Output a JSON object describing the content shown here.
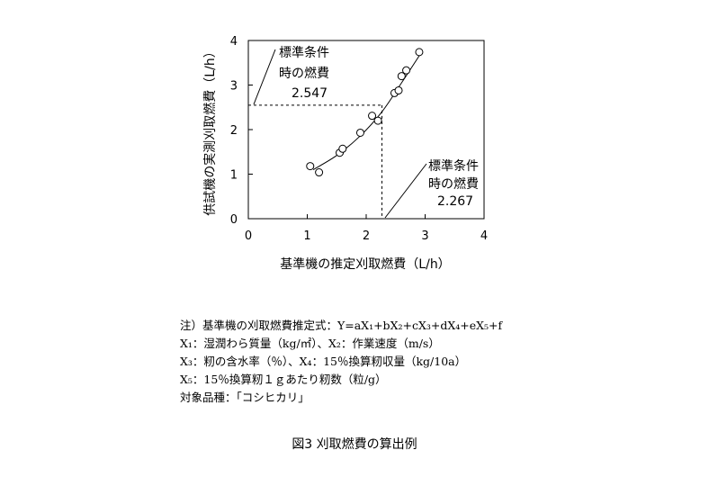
{
  "chart_data": {
    "type": "scatter",
    "xlabel": "基準機の推定刈取燃費（L/h）",
    "ylabel": "供試機の実測刈取燃費（L/h）",
    "xlim": [
      0,
      4
    ],
    "ylim": [
      0,
      4
    ],
    "xticks": [
      "0",
      "1",
      "2",
      "3",
      "4"
    ],
    "yticks": [
      "0",
      "1",
      "2",
      "3",
      "4"
    ],
    "points": [
      {
        "x": 1.05,
        "y": 1.18
      },
      {
        "x": 1.2,
        "y": 1.04
      },
      {
        "x": 1.55,
        "y": 1.48
      },
      {
        "x": 1.6,
        "y": 1.57
      },
      {
        "x": 1.9,
        "y": 1.93
      },
      {
        "x": 2.1,
        "y": 2.31
      },
      {
        "x": 2.2,
        "y": 2.2
      },
      {
        "x": 2.48,
        "y": 2.82
      },
      {
        "x": 2.55,
        "y": 2.88
      },
      {
        "x": 2.6,
        "y": 3.2
      },
      {
        "x": 2.68,
        "y": 3.33
      },
      {
        "x": 2.9,
        "y": 3.74
      }
    ],
    "fit_curve": [
      {
        "x": 1.1,
        "y": 1.1
      },
      {
        "x": 1.5,
        "y": 1.42
      },
      {
        "x": 1.9,
        "y": 1.86
      },
      {
        "x": 2.267,
        "y": 2.4
      },
      {
        "x": 2.6,
        "y": 3.05
      },
      {
        "x": 2.95,
        "y": 3.76
      }
    ],
    "reference": {
      "x": 2.267,
      "y": 2.547
    },
    "annotations": {
      "top_line1": "標準条件",
      "top_line2": "時の燃費",
      "top_value": "2.547",
      "right_line1": "標準条件",
      "right_line2": "時の燃費",
      "right_value": "2.267"
    }
  },
  "notes": {
    "line1": "注）基準機の刈取燃費推定式：Y=aX₁+bX₂+cX₃+dX₄+eX₅+f",
    "line2": "X₁：湿潤わら質量（kg/㎡）、X₂：作業速度（m/s）",
    "line3": "X₃：籾の含水率（％）、X₄：15％換算籾収量（kg/10a）",
    "line4": "X₅：15％換算籾１ｇあたり籾数（粒/g）",
    "line5": "対象品種：「コシヒカリ」"
  },
  "caption": "図3  刈取燃費の算出例"
}
